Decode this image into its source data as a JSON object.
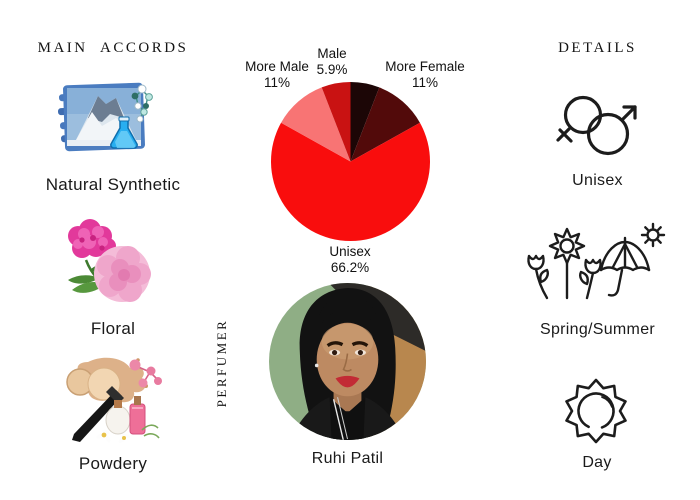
{
  "page": {
    "background": "#ffffff",
    "text_color": "#1a1a1a"
  },
  "left_column": {
    "header": "MAIN ACCORDS",
    "items": [
      {
        "label": "Natural Synthetic",
        "image": "mountain-flask-molecule-illustration"
      },
      {
        "label": "Floral",
        "image": "pink-peony-flowers-photo"
      },
      {
        "label": "Powdery",
        "image": "makeup-powder-brush-bottles-photo"
      }
    ]
  },
  "center_column": {
    "perfumer_header": "PERFUMER",
    "perfumer_name": "Ruhi Patil",
    "perfumer_photo": "circular-portrait-photo"
  },
  "right_column": {
    "header": "DETAILS",
    "items": [
      {
        "label": "Unisex",
        "icon": "unisex-gender-icon"
      },
      {
        "label": "Spring/Summer",
        "icon": "flowers-umbrella-sun-icon"
      },
      {
        "label": "Day",
        "icon": "sun-icon"
      }
    ]
  },
  "chart_data": {
    "type": "pie",
    "legend_position": "callout-labels",
    "direction": "clockwise",
    "start_angle_deg": 0,
    "slices": [
      {
        "label": "",
        "pct_text": "",
        "value": 5.9,
        "color": "#1c0606",
        "label_visible": false
      },
      {
        "label": "More Female",
        "pct_text": "11%",
        "value": 11,
        "color": "#520a0a",
        "label_visible": true
      },
      {
        "label": "Unisex",
        "pct_text": "66.2%",
        "value": 66.2,
        "color": "#f90d0d",
        "label_visible": true
      },
      {
        "label": "More Male",
        "pct_text": "11%",
        "value": 11,
        "color": "#f87474",
        "label_visible": true
      },
      {
        "label": "Male",
        "pct_text": "5.9%",
        "value": 5.9,
        "color": "#c91212",
        "label_visible": true
      }
    ]
  }
}
